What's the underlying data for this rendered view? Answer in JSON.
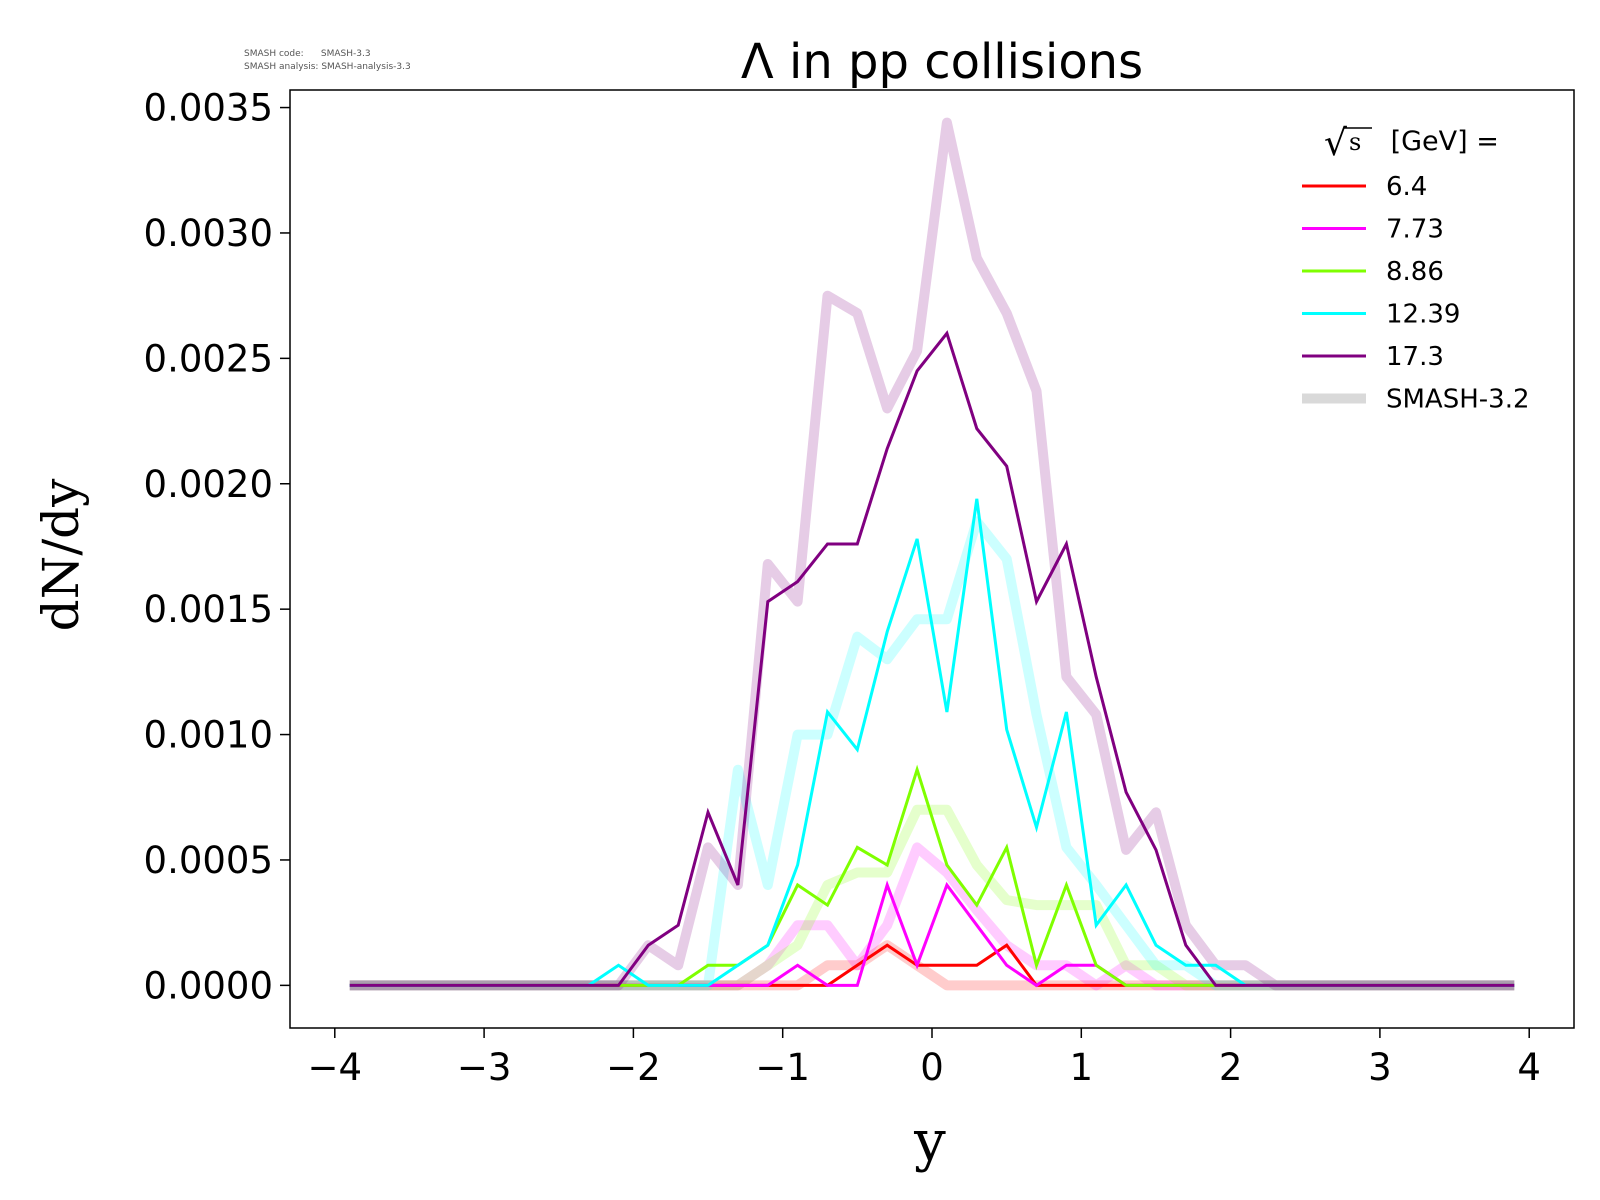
{
  "meta": {
    "code_label": "SMASH code:",
    "code_value": "SMASH-3.3",
    "analysis_label": "SMASH analysis:",
    "analysis_value": "SMASH-analysis-3.3"
  },
  "chart_data": {
    "type": "line",
    "title_symbol": "Λ",
    "title_rest": " in pp collisions",
    "xlabel": "y",
    "ylabel": "dN/dy",
    "xlim": [
      -4.3,
      4.3
    ],
    "ylim": [
      -0.00017,
      0.00357
    ],
    "xticks": [
      -4,
      -3,
      -2,
      -1,
      0,
      1,
      2,
      3,
      4
    ],
    "xtick_labels": [
      "−4",
      "−3",
      "−2",
      "−1",
      "0",
      "1",
      "2",
      "3",
      "4"
    ],
    "yticks": [
      0.0,
      0.0005,
      0.001,
      0.0015,
      0.002,
      0.0025,
      0.003,
      0.0035
    ],
    "ytick_labels": [
      "0.0000",
      "0.0005",
      "0.0010",
      "0.0015",
      "0.0020",
      "0.0025",
      "0.0030",
      "0.0035"
    ],
    "legend": {
      "title_suffix": " [GeV] =",
      "title_symbol": "s",
      "position": "top-right"
    },
    "x": [
      -3.9,
      -3.7,
      -3.5,
      -3.3,
      -3.1,
      -2.9,
      -2.7,
      -2.5,
      -2.3,
      -2.1,
      -1.9,
      -1.7,
      -1.5,
      -1.3,
      -1.1,
      -0.9,
      -0.7,
      -0.5,
      -0.3,
      -0.1,
      0.1,
      0.3,
      0.5,
      0.7,
      0.9,
      1.1,
      1.3,
      1.5,
      1.7,
      1.9,
      2.1,
      2.3,
      2.5,
      2.7,
      2.9,
      3.1,
      3.3,
      3.5,
      3.7,
      3.9
    ],
    "series": [
      {
        "name": "6.4",
        "color": "#ff0000",
        "kind": "current",
        "values": [
          0,
          0,
          0,
          0,
          0,
          0,
          0,
          0,
          0,
          0,
          0,
          0,
          0,
          0,
          0,
          0,
          0,
          8e-05,
          0.00016,
          8e-05,
          8e-05,
          8e-05,
          0.00016,
          0,
          0,
          0,
          0,
          0,
          0,
          0,
          0,
          0,
          0,
          0,
          0,
          0,
          0,
          0,
          0,
          0
        ]
      },
      {
        "name": "7.73",
        "color": "#ff00ff",
        "kind": "current",
        "values": [
          0,
          0,
          0,
          0,
          0,
          0,
          0,
          0,
          0,
          0,
          0,
          0,
          0,
          0,
          0,
          8e-05,
          0,
          0,
          0.0004,
          8e-05,
          0.0004,
          0.00024,
          8e-05,
          0,
          8e-05,
          8e-05,
          0,
          0,
          0,
          0,
          0,
          0,
          0,
          0,
          0,
          0,
          0,
          0,
          0,
          0
        ]
      },
      {
        "name": "8.86",
        "color": "#7fff00",
        "kind": "current",
        "values": [
          0,
          0,
          0,
          0,
          0,
          0,
          0,
          0,
          0,
          0,
          0,
          0,
          8e-05,
          8e-05,
          0.00016,
          0.0004,
          0.00032,
          0.00055,
          0.00048,
          0.00086,
          0.00048,
          0.00032,
          0.00055,
          8e-05,
          0.0004,
          8e-05,
          0,
          0,
          0,
          0,
          0,
          0,
          0,
          0,
          0,
          0,
          0,
          0,
          0,
          0
        ]
      },
      {
        "name": "12.39",
        "color": "#00ffff",
        "kind": "current",
        "values": [
          0,
          0,
          0,
          0,
          0,
          0,
          0,
          0,
          0,
          8e-05,
          0,
          0,
          0,
          8e-05,
          0.00016,
          0.00048,
          0.00109,
          0.00094,
          0.00141,
          0.00178,
          0.00109,
          0.00194,
          0.00102,
          0.00063,
          0.00109,
          0.00024,
          0.0004,
          0.00016,
          8e-05,
          8e-05,
          0,
          0,
          0,
          0,
          0,
          0,
          0,
          0,
          0,
          0
        ]
      },
      {
        "name": "17.3",
        "color": "#800080",
        "kind": "current",
        "values": [
          0,
          0,
          0,
          0,
          0,
          0,
          0,
          0,
          0,
          0,
          0.00016,
          0.00024,
          0.00069,
          0.0004,
          0.00153,
          0.00161,
          0.00176,
          0.00176,
          0.00214,
          0.00245,
          0.0026,
          0.00222,
          0.00207,
          0.00153,
          0.00176,
          0.00123,
          0.00077,
          0.00054,
          0.00016,
          0,
          0,
          0,
          0,
          0,
          0,
          0,
          0,
          0,
          0,
          0
        ]
      },
      {
        "name": "6.4 (SMASH-3.2)",
        "color": "#ff0000",
        "kind": "reference",
        "values": [
          0,
          0,
          0,
          0,
          0,
          0,
          0,
          0,
          0,
          0,
          0,
          0,
          0,
          0,
          0,
          0,
          8e-05,
          8e-05,
          0.00016,
          8e-05,
          0,
          0,
          0,
          0,
          0,
          0,
          0,
          0,
          0,
          0,
          0,
          0,
          0,
          0,
          0,
          0,
          0,
          0,
          0,
          0
        ]
      },
      {
        "name": "7.73 (SMASH-3.2)",
        "color": "#ff00ff",
        "kind": "reference",
        "values": [
          0,
          0,
          0,
          0,
          0,
          0,
          0,
          0,
          0,
          0,
          0,
          0,
          0,
          0,
          8e-05,
          0.00024,
          0.00024,
          8e-05,
          0.00024,
          0.00055,
          0.00045,
          0.0003,
          0.00016,
          8e-05,
          8e-05,
          0,
          8e-05,
          0,
          0,
          0,
          0,
          0,
          0,
          0,
          0,
          0,
          0,
          0,
          0,
          0
        ]
      },
      {
        "name": "8.86 (SMASH-3.2)",
        "color": "#7fff00",
        "kind": "reference",
        "values": [
          0,
          0,
          0,
          0,
          0,
          0,
          0,
          0,
          0,
          0,
          0,
          0,
          0,
          0,
          8e-05,
          0.00016,
          0.0004,
          0.00045,
          0.00045,
          0.0007,
          0.0007,
          0.00048,
          0.00034,
          0.00032,
          0.00032,
          0.00032,
          8e-05,
          8e-05,
          0,
          0,
          0,
          0,
          0,
          0,
          0,
          0,
          0,
          0,
          0,
          0
        ]
      },
      {
        "name": "12.39 (SMASH-3.2)",
        "color": "#00ffff",
        "kind": "reference",
        "values": [
          0,
          0,
          0,
          0,
          0,
          0,
          0,
          0,
          0,
          0,
          0,
          0,
          0,
          0.00086,
          0.0004,
          0.001,
          0.001,
          0.00139,
          0.0013,
          0.00146,
          0.00146,
          0.00185,
          0.0017,
          0.00108,
          0.00055,
          0.0004,
          0.00024,
          8e-05,
          8e-05,
          0,
          0,
          0,
          0,
          0,
          0,
          0,
          0,
          0,
          0,
          0
        ]
      },
      {
        "name": "17.3 (SMASH-3.2)",
        "color": "#800080",
        "kind": "reference",
        "values": [
          0,
          0,
          0,
          0,
          0,
          0,
          0,
          0,
          0,
          0,
          0.00016,
          8e-05,
          0.00055,
          0.0004,
          0.00168,
          0.00153,
          0.00275,
          0.00268,
          0.0023,
          0.00253,
          0.00344,
          0.0029,
          0.00268,
          0.00237,
          0.00123,
          0.00108,
          0.00054,
          0.00069,
          0.00024,
          8e-05,
          8e-05,
          0,
          0,
          0,
          0,
          0,
          0,
          0,
          0,
          0
        ]
      }
    ],
    "legend_entries": [
      {
        "label": "6.4",
        "color": "#ff0000",
        "style": "current"
      },
      {
        "label": "7.73",
        "color": "#ff00ff",
        "style": "current"
      },
      {
        "label": "8.86",
        "color": "#7fff00",
        "style": "current"
      },
      {
        "label": "12.39",
        "color": "#00ffff",
        "style": "current"
      },
      {
        "label": "17.3",
        "color": "#800080",
        "style": "current"
      },
      {
        "label": "SMASH-3.2",
        "color": "#d9d9d9",
        "style": "reference"
      }
    ]
  }
}
